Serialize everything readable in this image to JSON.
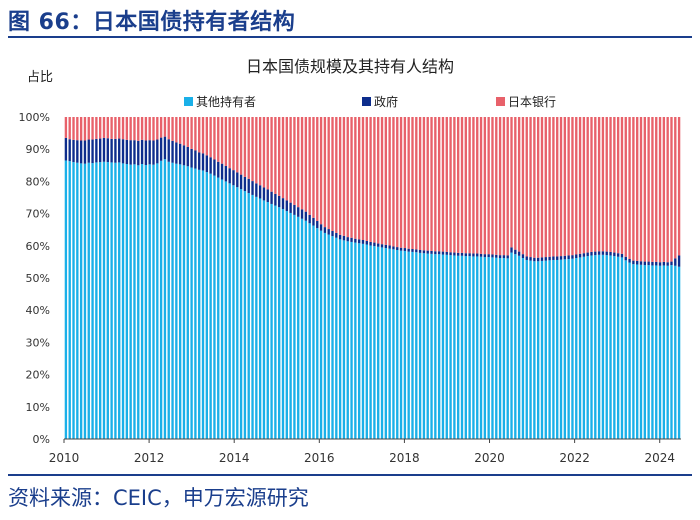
{
  "figure": {
    "title": "图 66：日本国债持有者结构",
    "source": "资料来源：CEIC，申万宏源研究",
    "colors": {
      "accent": "#1a3e8c"
    }
  },
  "chart_data": {
    "type": "bar",
    "stacked": true,
    "title": "日本国债规模及其持有人结构",
    "ylabel": "占比",
    "xlabel": "",
    "ylim": [
      0,
      100
    ],
    "yticks": [
      "0%",
      "10%",
      "20%",
      "30%",
      "40%",
      "50%",
      "60%",
      "70%",
      "80%",
      "90%",
      "100%"
    ],
    "xlim": [
      2010.0,
      2024.5
    ],
    "xticks": [
      "2010",
      "2012",
      "2014",
      "2016",
      "2018",
      "2020",
      "2022",
      "2024"
    ],
    "legend_position": "top",
    "grid": false,
    "series_meta": [
      {
        "name": "其他持有者",
        "color": "#1ab0e8"
      },
      {
        "name": "政府",
        "color": "#0d2d8c"
      },
      {
        "name": "日本银行",
        "color": "#e8616a"
      }
    ],
    "series_names": [
      "其他持有者",
      "政府",
      "日本银行"
    ],
    "period_start": 2010.0,
    "period_step": 0.08333,
    "others": [
      86.5,
      86.3,
      86.0,
      85.8,
      85.6,
      85.5,
      85.8,
      85.7,
      85.9,
      86.0,
      86.1,
      86.0,
      85.9,
      85.8,
      85.9,
      85.6,
      85.4,
      85.2,
      85.3,
      85.0,
      85.4,
      85.1,
      85.3,
      85.2,
      85.6,
      86.4,
      86.9,
      86.1,
      85.8,
      85.5,
      85.3,
      85.0,
      84.7,
      84.3,
      84.0,
      83.6,
      83.4,
      82.9,
      82.4,
      81.8,
      81.2,
      80.6,
      80.0,
      79.4,
      78.8,
      78.2,
      77.6,
      77.0,
      76.4,
      75.8,
      75.2,
      74.7,
      74.1,
      73.6,
      73.0,
      72.5,
      72.0,
      71.4,
      70.8,
      70.2,
      69.6,
      69.0,
      68.4,
      67.8,
      67.0,
      66.3,
      65.5,
      64.7,
      64.0,
      63.5,
      63.0,
      62.5,
      62.0,
      61.7,
      61.4,
      61.2,
      61.0,
      60.8,
      60.6,
      60.4,
      60.1,
      59.9,
      59.7,
      59.5,
      59.3,
      59.1,
      58.9,
      58.7,
      58.5,
      58.4,
      58.2,
      58.1,
      58.0,
      57.8,
      57.7,
      57.6,
      57.5,
      57.4,
      57.4,
      57.3,
      57.2,
      57.1,
      57.0,
      56.9,
      56.9,
      56.8,
      56.8,
      56.7,
      56.7,
      56.6,
      56.5,
      56.5,
      56.4,
      56.3,
      56.2,
      56.2,
      56.1,
      57.9,
      57.4,
      56.9,
      56.2,
      55.6,
      55.4,
      55.2,
      55.2,
      55.3,
      55.4,
      55.5,
      55.6,
      55.6,
      55.7,
      55.8,
      55.9,
      56.0,
      56.2,
      56.4,
      56.6,
      56.8,
      57.0,
      57.1,
      57.2,
      57.2,
      57.1,
      57.0,
      56.8,
      56.6,
      56.4,
      55.5,
      54.8,
      54.3,
      54.2,
      54.1,
      54.0,
      54.0,
      53.9,
      53.9,
      53.8,
      53.9,
      53.8,
      54.0,
      53.8,
      53.5
    ],
    "government": [
      7.0,
      6.8,
      6.9,
      7.0,
      7.1,
      7.2,
      7.2,
      7.3,
      7.3,
      7.3,
      7.4,
      7.4,
      7.3,
      7.4,
      7.4,
      7.5,
      7.5,
      7.6,
      7.5,
      7.6,
      7.5,
      7.6,
      7.5,
      7.5,
      7.4,
      7.2,
      7.0,
      7.0,
      6.8,
      6.6,
      6.4,
      6.2,
      6.0,
      5.8,
      5.6,
      5.4,
      5.3,
      5.2,
      5.1,
      5.0,
      4.9,
      4.9,
      4.8,
      4.7,
      4.7,
      4.6,
      4.5,
      4.4,
      4.4,
      4.3,
      4.2,
      4.1,
      4.0,
      3.9,
      3.8,
      3.6,
      3.5,
      3.4,
      3.3,
      3.2,
      3.1,
      3.0,
      2.9,
      2.8,
      2.6,
      2.4,
      2.2,
      2.0,
      1.8,
      1.7,
      1.6,
      1.5,
      1.4,
      1.4,
      1.3,
      1.3,
      1.2,
      1.2,
      1.2,
      1.1,
      1.1,
      1.1,
      1.0,
      1.0,
      1.0,
      1.0,
      0.9,
      0.9,
      0.9,
      0.9,
      0.9,
      0.9,
      0.9,
      0.9,
      0.9,
      0.9,
      0.9,
      0.9,
      0.9,
      0.9,
      0.9,
      0.9,
      0.9,
      0.9,
      0.9,
      0.9,
      0.9,
      0.9,
      0.9,
      0.9,
      0.9,
      0.9,
      0.9,
      0.9,
      0.9,
      0.9,
      0.9,
      1.6,
      1.4,
      1.3,
      1.2,
      1.1,
      1.1,
      1.1,
      1.1,
      1.1,
      1.1,
      1.1,
      1.1,
      1.1,
      1.1,
      1.1,
      1.1,
      1.1,
      1.1,
      1.1,
      1.1,
      1.1,
      1.1,
      1.1,
      1.1,
      1.1,
      1.1,
      1.1,
      1.1,
      1.1,
      1.1,
      1.1,
      1.1,
      1.1,
      1.1,
      1.1,
      1.1,
      1.1,
      1.1,
      1.1,
      1.1,
      1.1,
      1.1,
      1.1,
      2.3,
      3.5
    ],
    "boj": [
      6.5,
      6.9,
      7.1,
      7.2,
      7.3,
      7.3,
      7.0,
      7.0,
      6.8,
      6.7,
      6.5,
      6.6,
      6.8,
      6.8,
      6.7,
      6.9,
      7.1,
      7.2,
      7.2,
      7.4,
      7.1,
      7.3,
      7.2,
      7.3,
      7.0,
      6.4,
      6.1,
      6.9,
      7.4,
      7.9,
      8.3,
      8.8,
      9.3,
      9.9,
      10.4,
      11.0,
      11.3,
      11.9,
      12.5,
      13.2,
      13.9,
      14.5,
      15.2,
      15.9,
      16.5,
      17.2,
      17.9,
      18.6,
      19.2,
      19.9,
      20.6,
      21.2,
      21.9,
      22.5,
      23.2,
      23.9,
      24.5,
      25.2,
      25.9,
      26.6,
      27.3,
      28.0,
      28.7,
      29.4,
      30.4,
      31.3,
      32.3,
      33.3,
      34.2,
      34.8,
      35.4,
      36.0,
      36.6,
      36.9,
      37.3,
      37.5,
      37.8,
      38.0,
      38.2,
      38.5,
      38.8,
      39.0,
      39.3,
      39.5,
      39.7,
      39.9,
      40.2,
      40.4,
      40.6,
      40.7,
      40.9,
      41.0,
      41.1,
      41.3,
      41.4,
      41.5,
      41.6,
      41.7,
      41.7,
      41.8,
      41.9,
      42.0,
      42.1,
      42.2,
      42.2,
      42.3,
      42.3,
      42.4,
      42.4,
      42.5,
      42.6,
      42.6,
      42.7,
      42.8,
      42.9,
      42.9,
      43.0,
      40.5,
      41.2,
      41.8,
      42.6,
      43.3,
      43.5,
      43.7,
      43.7,
      43.6,
      43.5,
      43.4,
      43.3,
      43.3,
      43.2,
      43.1,
      43.0,
      42.9,
      42.7,
      42.5,
      42.3,
      42.1,
      41.9,
      41.8,
      41.7,
      41.7,
      41.8,
      41.9,
      42.1,
      42.3,
      42.5,
      43.4,
      44.1,
      44.6,
      44.7,
      44.8,
      44.9,
      44.9,
      45.0,
      45.0,
      45.1,
      45.0,
      45.1,
      44.9,
      43.9,
      43.0
    ]
  }
}
